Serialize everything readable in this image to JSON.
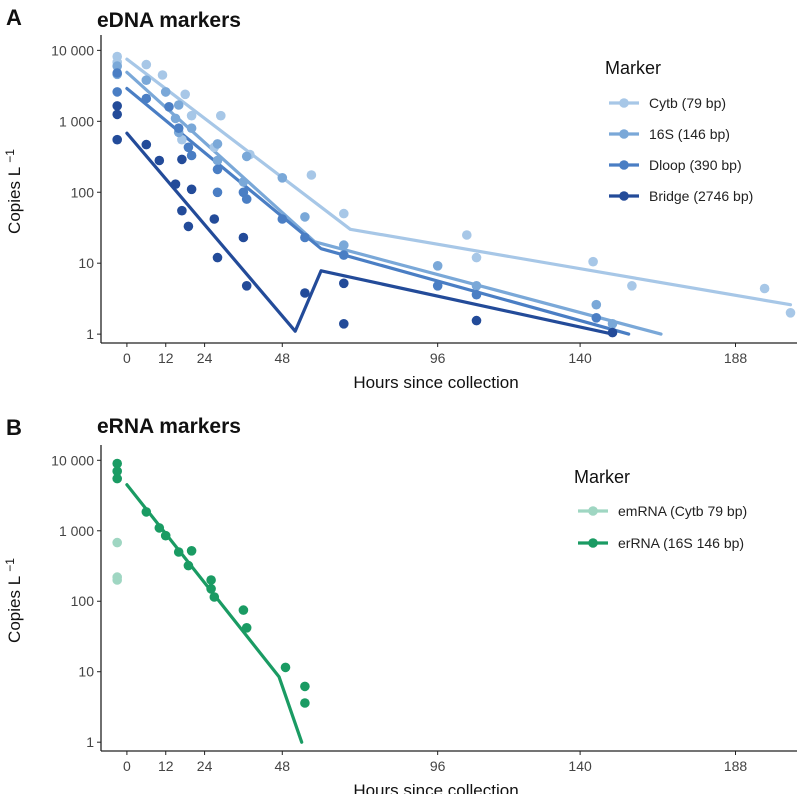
{
  "chart_data": [
    {
      "type": "scatter",
      "panel_letter": "A",
      "title": "eDNA markers",
      "xlabel": "Hours since collection",
      "ylabel": "Copies L",
      "ylabel_superscript": "−1",
      "yscale": "log",
      "xlim": [
        -8,
        207
      ],
      "ylim": [
        0.75,
        14000
      ],
      "x_ticks": [
        0,
        12,
        24,
        48,
        96,
        140,
        188
      ],
      "y_ticks": [
        1,
        10,
        100,
        1000,
        10000
      ],
      "y_tick_labels": [
        "1",
        "10",
        "100",
        "1 000",
        "10 000"
      ],
      "grid": false,
      "legend_title": "Marker",
      "legend_position": "top-right",
      "series": [
        {
          "name": "Cytb (79 bp)",
          "color": "#a7c7e7",
          "points": [
            [
              -3,
              8200
            ],
            [
              -3,
              6800
            ],
            [
              6,
              6300
            ],
            [
              11,
              4500
            ],
            [
              12,
              2600
            ],
            [
              18,
              2400
            ],
            [
              20,
              1200
            ],
            [
              17,
              550
            ],
            [
              29,
              1200
            ],
            [
              27,
              430
            ],
            [
              38,
              340
            ],
            [
              57,
              175
            ],
            [
              67,
              50
            ],
            [
              105,
              25
            ],
            [
              108,
              12
            ],
            [
              144,
              10.5
            ],
            [
              156,
              4.8
            ],
            [
              197,
              4.4
            ],
            [
              205,
              2.0
            ]
          ],
          "fit": [
            [
              0,
              7500
            ],
            [
              69,
              30
            ],
            [
              205,
              2.6
            ]
          ]
        },
        {
          "name": "16S (146 bp)",
          "color": "#7aa8d8",
          "points": [
            [
              -3,
              6000
            ],
            [
              -3,
              4600
            ],
            [
              6,
              3800
            ],
            [
              12,
              2600
            ],
            [
              16,
              1700
            ],
            [
              15,
              1100
            ],
            [
              20,
              800
            ],
            [
              16,
              700
            ],
            [
              28,
              480
            ],
            [
              28,
              280
            ],
            [
              37,
              320
            ],
            [
              36,
              140
            ],
            [
              48,
              160
            ],
            [
              55,
              45
            ],
            [
              67,
              18
            ],
            [
              96,
              9.2
            ],
            [
              108,
              4.8
            ],
            [
              145,
              2.6
            ],
            [
              150,
              1.4
            ]
          ],
          "fit": [
            [
              0,
              4900
            ],
            [
              58,
              20
            ],
            [
              165,
              1.0
            ]
          ]
        },
        {
          "name": "Dloop (390 bp)",
          "color": "#4a7ec4",
          "points": [
            [
              -3,
              4800
            ],
            [
              -3,
              2600
            ],
            [
              6,
              2100
            ],
            [
              13,
              1600
            ],
            [
              16,
              800
            ],
            [
              19,
              430
            ],
            [
              20,
              330
            ],
            [
              28,
              210
            ],
            [
              28,
              100
            ],
            [
              36,
              100
            ],
            [
              37,
              80
            ],
            [
              48,
              42
            ],
            [
              55,
              23
            ],
            [
              67,
              13
            ],
            [
              96,
              4.8
            ],
            [
              108,
              3.6
            ],
            [
              145,
              1.7
            ]
          ],
          "fit": [
            [
              0,
              2900
            ],
            [
              60,
              16
            ],
            [
              155,
              1.0
            ]
          ]
        },
        {
          "name": "Bridge (2746 bp)",
          "color": "#234b99",
          "points": [
            [
              -3,
              1650
            ],
            [
              -3,
              1250
            ],
            [
              -3,
              550
            ],
            [
              6,
              470
            ],
            [
              10,
              280
            ],
            [
              17,
              290
            ],
            [
              15,
              130
            ],
            [
              20,
              110
            ],
            [
              17,
              55
            ],
            [
              19,
              33
            ],
            [
              27,
              42
            ],
            [
              28,
              12
            ],
            [
              36,
              23
            ],
            [
              37,
              4.8
            ],
            [
              55,
              3.8
            ],
            [
              67,
              5.2
            ],
            [
              67,
              1.4
            ],
            [
              108,
              1.55
            ],
            [
              150,
              1.05
            ]
          ],
          "fit": [
            [
              0,
              680
            ],
            [
              52,
              1.1
            ],
            [
              60,
              7.8
            ],
            [
              150,
              1.0
            ]
          ]
        }
      ]
    },
    {
      "type": "scatter",
      "panel_letter": "B",
      "title": "eRNA markers",
      "xlabel": "Hours since collection",
      "ylabel": "Copies L",
      "ylabel_superscript": "−1",
      "yscale": "log",
      "xlim": [
        -8,
        207
      ],
      "ylim": [
        0.75,
        14000
      ],
      "x_ticks": [
        0,
        12,
        24,
        48,
        96,
        140,
        188
      ],
      "y_ticks": [
        1,
        10,
        100,
        1000,
        10000
      ],
      "y_tick_labels": [
        "1",
        "10",
        "100",
        "1 000",
        "10 000"
      ],
      "grid": false,
      "legend_title": "Marker",
      "legend_position": "top-right",
      "series": [
        {
          "name": "emRNA (Cytb 79 bp)",
          "color": "#9fd6c2",
          "points": [
            [
              -3,
              680
            ],
            [
              -3,
              220
            ],
            [
              -3,
              200
            ]
          ],
          "fit": []
        },
        {
          "name": "erRNA (16S 146 bp)",
          "color": "#1a9b63",
          "points": [
            [
              -3,
              9000
            ],
            [
              -3,
              7000
            ],
            [
              -3,
              5500
            ],
            [
              6,
              1850
            ],
            [
              10,
              1100
            ],
            [
              12,
              850
            ],
            [
              16,
              500
            ],
            [
              20,
              520
            ],
            [
              19,
              320
            ],
            [
              26,
              200
            ],
            [
              26,
              150
            ],
            [
              27,
              115
            ],
            [
              36,
              75
            ],
            [
              37,
              42
            ],
            [
              49,
              11.5
            ],
            [
              55,
              6.2
            ],
            [
              55,
              3.6
            ]
          ],
          "fit": [
            [
              0,
              4500
            ],
            [
              47,
              8.5
            ],
            [
              54,
              1.0
            ]
          ]
        }
      ]
    }
  ]
}
